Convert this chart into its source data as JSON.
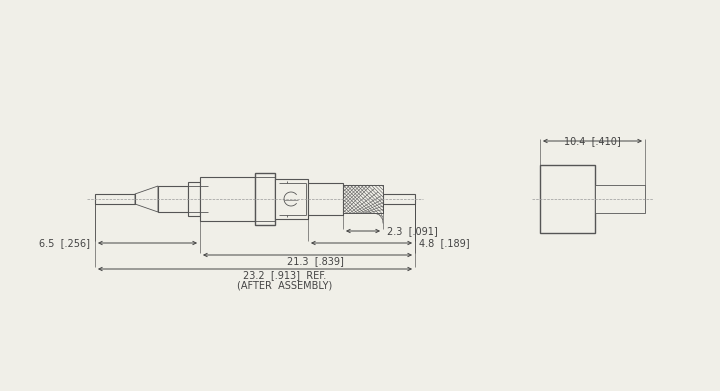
{
  "bg_color": "#f0efe8",
  "line_color": "#555555",
  "dim_color": "#444444",
  "lw_main": 0.8,
  "lw_thin": 0.6,
  "lw_thick": 1.0,
  "font_size": 7.0,
  "dims": {
    "d1_label": "2.3  [.091]",
    "d2_label": "4.8  [.189]",
    "d3_label": "21.3  [.839]",
    "d4_label": "23.2  [.913]  REF.",
    "d4_label2": "(AFTER  ASSEMBLY)",
    "d5_label": "6.5  [.256]",
    "d6_label": "10.4  [.410]"
  }
}
